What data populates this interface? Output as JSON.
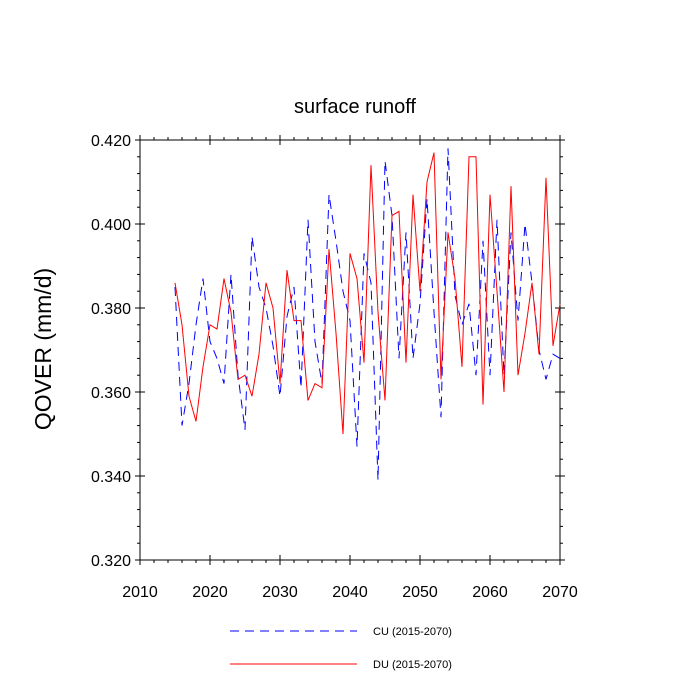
{
  "chart_data": {
    "type": "line",
    "title": "surface runoff",
    "ylabel": "QOVER  (mm/d)",
    "xlabel": "",
    "xlim": [
      2010,
      2070
    ],
    "ylim": [
      0.32,
      0.42
    ],
    "xticks": [
      2010,
      2020,
      2030,
      2040,
      2050,
      2060,
      2070
    ],
    "xtick_labels": [
      "2010",
      "2020",
      "2030",
      "2040",
      "2050",
      "2060",
      "2070"
    ],
    "yticks": [
      0.32,
      0.34,
      0.36,
      0.38,
      0.4,
      0.42
    ],
    "ytick_labels": [
      "0.320",
      "0.340",
      "0.360",
      "0.380",
      "0.400",
      "0.420"
    ],
    "grid": false,
    "legend_position": "bottom",
    "series": [
      {
        "name": "CU (2015-2070)",
        "color": "#0000ff",
        "dash": "dashed",
        "x": [
          2015,
          2016,
          2017,
          2018,
          2019,
          2020,
          2021,
          2022,
          2023,
          2024,
          2025,
          2026,
          2027,
          2028,
          2029,
          2030,
          2031,
          2032,
          2033,
          2034,
          2035,
          2036,
          2037,
          2038,
          2039,
          2040,
          2041,
          2042,
          2043,
          2044,
          2045,
          2046,
          2047,
          2048,
          2049,
          2050,
          2051,
          2052,
          2053,
          2054,
          2055,
          2056,
          2057,
          2058,
          2059,
          2060,
          2061,
          2062,
          2063,
          2064,
          2065,
          2066,
          2067,
          2068,
          2069,
          2070
        ],
        "values": [
          0.385,
          0.352,
          0.362,
          0.376,
          0.387,
          0.372,
          0.368,
          0.362,
          0.388,
          0.364,
          0.351,
          0.397,
          0.385,
          0.38,
          0.371,
          0.359,
          0.378,
          0.385,
          0.361,
          0.401,
          0.372,
          0.362,
          0.407,
          0.396,
          0.384,
          0.377,
          0.347,
          0.393,
          0.386,
          0.339,
          0.415,
          0.402,
          0.368,
          0.398,
          0.368,
          0.381,
          0.406,
          0.379,
          0.354,
          0.418,
          0.383,
          0.376,
          0.381,
          0.364,
          0.396,
          0.364,
          0.401,
          0.364,
          0.398,
          0.377,
          0.4,
          0.386,
          0.37,
          0.363,
          0.369,
          0.368
        ]
      },
      {
        "name": "DU (2015-2070)",
        "color": "#ff0000",
        "dash": "solid",
        "x": [
          2015,
          2016,
          2017,
          2018,
          2019,
          2020,
          2021,
          2022,
          2023,
          2024,
          2025,
          2026,
          2027,
          2028,
          2029,
          2030,
          2031,
          2032,
          2033,
          2034,
          2035,
          2036,
          2037,
          2038,
          2039,
          2040,
          2041,
          2042,
          2043,
          2044,
          2045,
          2046,
          2047,
          2048,
          2049,
          2050,
          2051,
          2052,
          2053,
          2054,
          2055,
          2056,
          2057,
          2058,
          2059,
          2060,
          2061,
          2062,
          2063,
          2064,
          2065,
          2066,
          2067,
          2068,
          2069,
          2070
        ],
        "values": [
          0.386,
          0.376,
          0.359,
          0.353,
          0.366,
          0.376,
          0.375,
          0.387,
          0.379,
          0.363,
          0.364,
          0.359,
          0.369,
          0.386,
          0.38,
          0.362,
          0.389,
          0.377,
          0.377,
          0.358,
          0.362,
          0.361,
          0.394,
          0.374,
          0.35,
          0.393,
          0.387,
          0.367,
          0.414,
          0.379,
          0.358,
          0.402,
          0.403,
          0.367,
          0.407,
          0.384,
          0.41,
          0.417,
          0.363,
          0.398,
          0.387,
          0.366,
          0.416,
          0.416,
          0.357,
          0.407,
          0.384,
          0.36,
          0.409,
          0.364,
          0.374,
          0.386,
          0.369,
          0.411,
          0.371,
          0.381
        ]
      }
    ]
  }
}
